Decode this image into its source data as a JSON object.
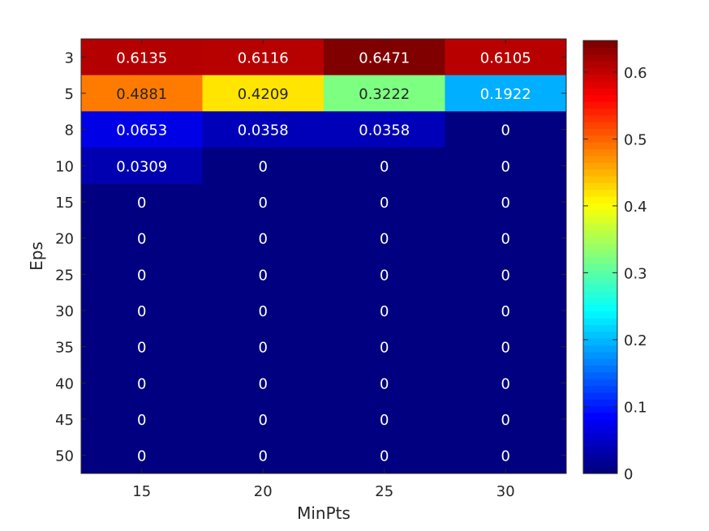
{
  "chart_data": {
    "type": "heatmap",
    "title": "",
    "xlabel": "MinPts",
    "ylabel": "Eps",
    "x_categories": [
      "15",
      "20",
      "25",
      "30"
    ],
    "y_categories": [
      "3",
      "5",
      "8",
      "10",
      "15",
      "20",
      "25",
      "30",
      "35",
      "40",
      "45",
      "50"
    ],
    "values": [
      [
        0.6135,
        0.6116,
        0.6471,
        0.6105
      ],
      [
        0.4881,
        0.4209,
        0.3222,
        0.1922
      ],
      [
        0.0653,
        0.0358,
        0.0358,
        0
      ],
      [
        0.0309,
        0,
        0,
        0
      ],
      [
        0,
        0,
        0,
        0
      ],
      [
        0,
        0,
        0,
        0
      ],
      [
        0,
        0,
        0,
        0
      ],
      [
        0,
        0,
        0,
        0
      ],
      [
        0,
        0,
        0,
        0
      ],
      [
        0,
        0,
        0,
        0
      ],
      [
        0,
        0,
        0,
        0
      ],
      [
        0,
        0,
        0,
        0
      ]
    ],
    "colormap": "jet",
    "clim": [
      0,
      0.6471
    ],
    "colorbar_ticks": [
      0,
      0.1,
      0.2,
      0.3,
      0.4,
      0.5,
      0.6
    ],
    "colorbar_tick_labels": [
      "0",
      "0.1",
      "0.2",
      "0.3",
      "0.4",
      "0.5",
      "0.6"
    ]
  }
}
